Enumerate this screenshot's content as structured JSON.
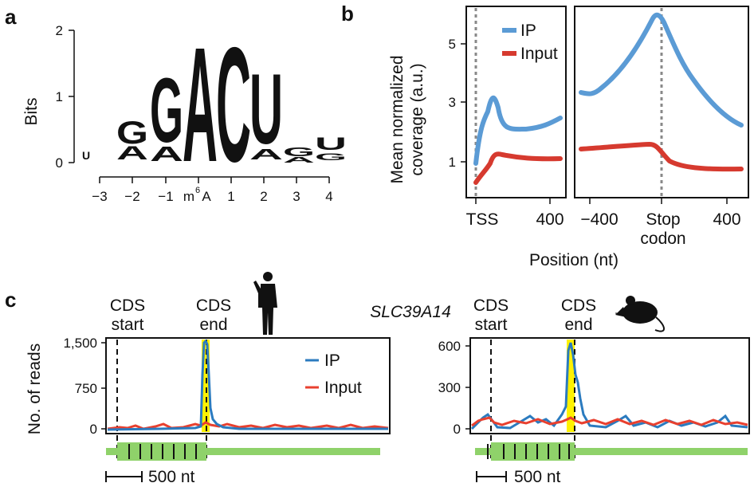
{
  "panels": {
    "a": {
      "letter": "a",
      "ylabel": "Bits",
      "yticks": [
        "0",
        "1",
        "2"
      ],
      "xticks": [
        "−3",
        "−2",
        "−1",
        "m",
        "A",
        "1",
        "2",
        "3",
        "4"
      ],
      "m6a_sup": "6"
    },
    "b": {
      "letter": "b",
      "ylabel_line1": "Mean normalized",
      "ylabel_line2": "coverage (a.u.)",
      "yticks": [
        "1",
        "3",
        "5"
      ],
      "left_xticks": [
        "TSS",
        "400"
      ],
      "right_xticks": [
        "−400",
        "Stop",
        "codon",
        "400"
      ],
      "xlabel": "Position (nt)",
      "legend": {
        "ip": "IP",
        "input": "Input"
      }
    },
    "c": {
      "letter": "c",
      "ylabel": "No. of reads",
      "gene": "SLC39A14",
      "left": {
        "cds_start_1": "CDS",
        "cds_start_2": "start",
        "cds_end_1": "CDS",
        "cds_end_2": "end",
        "yticks": [
          "1,500",
          "750",
          "0"
        ],
        "scale": "500 nt",
        "legend": {
          "ip": "IP",
          "input": "Input"
        }
      },
      "right": {
        "cds_start_1": "CDS",
        "cds_start_2": "start",
        "cds_end_1": "CDS",
        "cds_end_2": "end",
        "yticks": [
          "600",
          "300",
          "0"
        ],
        "scale": "500 nt"
      }
    }
  },
  "colors": {
    "ip_b": "#5b9bd5",
    "input_b": "#d63a2f",
    "ip_c": "#2b7bbf",
    "input_c": "#e8402f",
    "highlight": "#fff200",
    "gene_green": "#8fd26a",
    "logo_A": "#2fa84f",
    "logo_C": "#3a3a9e",
    "logo_G": "#f39a2b",
    "logo_U": "#e02020"
  },
  "chart_data": [
    {
      "type": "line",
      "panel": "b-left",
      "x_region": "TSS to +400",
      "series": [
        {
          "name": "IP",
          "x": [
            0,
            40,
            80,
            120,
            200,
            300,
            400
          ],
          "y": [
            0.9,
            2.4,
            3.1,
            2.2,
            2.0,
            2.2,
            2.45
          ]
        },
        {
          "name": "Input",
          "x": [
            0,
            40,
            80,
            120,
            200,
            300,
            400
          ],
          "y": [
            0.35,
            0.8,
            1.2,
            1.15,
            1.1,
            1.1,
            1.1
          ]
        }
      ],
      "ylabel": "Mean normalized coverage (a.u.)"
    },
    {
      "type": "line",
      "panel": "b-right",
      "series": [
        {
          "name": "IP",
          "x": [
            -500,
            -400,
            -200,
            0,
            200,
            400,
            500
          ],
          "y": [
            3.3,
            3.3,
            4.5,
            5.8,
            3.7,
            2.6,
            2.25
          ]
        },
        {
          "name": "Input",
          "x": [
            -500,
            -400,
            -200,
            0,
            200,
            400,
            500
          ],
          "y": [
            1.4,
            1.4,
            1.5,
            1.5,
            0.85,
            0.75,
            0.75
          ]
        }
      ],
      "xlabel": "Position (nt)"
    },
    {
      "type": "line",
      "panel": "c-left",
      "ylim": [
        0,
        1700
      ],
      "series": [
        {
          "name": "IP",
          "peak": 1600
        },
        {
          "name": "Input",
          "peak": 80
        }
      ]
    },
    {
      "type": "line",
      "panel": "c-right",
      "title": "SLC39A14",
      "ylim": [
        0,
        700
      ],
      "series": [
        {
          "name": "IP",
          "peak": 600
        },
        {
          "name": "Input",
          "peak": 100
        }
      ]
    }
  ]
}
